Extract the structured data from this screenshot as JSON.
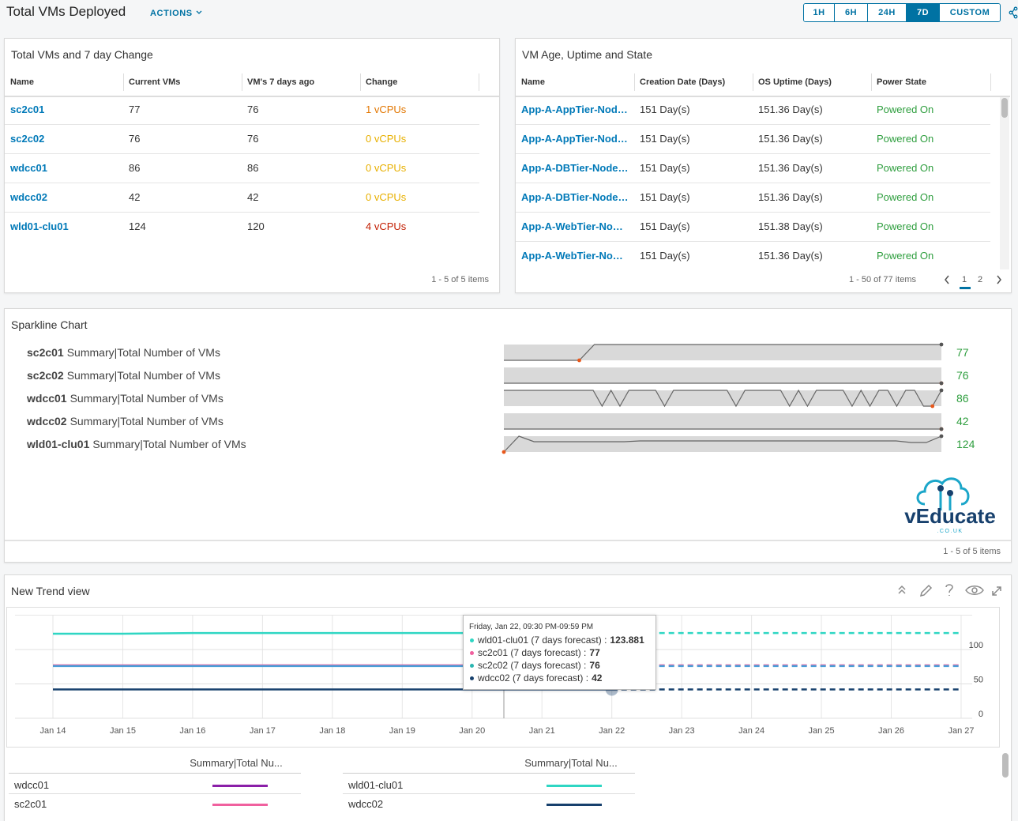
{
  "header": {
    "title": "Total VMs Deployed",
    "actions": "ACTIONS",
    "ranges": [
      "1H",
      "6H",
      "24H",
      "7D",
      "CUSTOM"
    ],
    "selected_range": 3
  },
  "vm_change": {
    "title": "Total VMs and 7 day Change",
    "columns": [
      "Name",
      "Current VMs",
      "VM's 7 days ago",
      "Change"
    ],
    "rows": [
      {
        "name": "sc2c01",
        "current": 77,
        "ago": 76,
        "change": "1 vCPUs",
        "change_color": "#e27600"
      },
      {
        "name": "sc2c02",
        "current": 76,
        "ago": 76,
        "change": "0 vCPUs",
        "change_color": "#e8b000"
      },
      {
        "name": "wdcc01",
        "current": 86,
        "ago": 86,
        "change": "0 vCPUs",
        "change_color": "#e8b000"
      },
      {
        "name": "wdcc02",
        "current": 42,
        "ago": 42,
        "change": "0 vCPUs",
        "change_color": "#e8b000"
      },
      {
        "name": "wld01-clu01",
        "current": 124,
        "ago": 120,
        "change": "4 vCPUs",
        "change_color": "#c21d00"
      }
    ],
    "footer": "1 - 5 of 5 items"
  },
  "vm_age": {
    "title": "VM Age, Uptime and State",
    "columns": [
      "Name",
      "Creation Date (Days)",
      "OS Uptime (Days)",
      "Power State"
    ],
    "rows": [
      [
        "App-A-AppTier-Nod…",
        "151 Day(s)",
        "151.36 Day(s)",
        "Powered On"
      ],
      [
        "App-A-AppTier-Nod…",
        "151 Day(s)",
        "151.36 Day(s)",
        "Powered On"
      ],
      [
        "App-A-DBTier-Node…",
        "151 Day(s)",
        "151.36 Day(s)",
        "Powered On"
      ],
      [
        "App-A-DBTier-Node…",
        "151 Day(s)",
        "151.36 Day(s)",
        "Powered On"
      ],
      [
        "App-A-WebTier-No…",
        "151 Day(s)",
        "151.38 Day(s)",
        "Powered On"
      ],
      [
        "App-A-WebTier-No…",
        "151 Day(s)",
        "151.36 Day(s)",
        "Powered On"
      ]
    ],
    "state_color": "#2e9e3e",
    "footer": "1 - 50 of 77 items",
    "pages": [
      1,
      2
    ],
    "current_page": 0
  },
  "sparklines": {
    "title": "Sparkline Chart",
    "metric": "Summary|Total Number of VMs",
    "value_color": "#2e9e3e",
    "rows": [
      {
        "name": "sc2c01",
        "value": 77,
        "values": [
          76,
          76,
          76,
          76,
          76,
          76,
          77,
          77,
          77,
          77,
          77,
          77,
          77,
          77,
          77,
          77,
          77,
          77,
          77,
          77,
          77,
          77,
          77,
          77,
          77,
          77,
          77,
          77,
          77,
          77
        ]
      },
      {
        "name": "sc2c02",
        "value": 76,
        "values": [
          76,
          76,
          76,
          76,
          76,
          76,
          76,
          76,
          76,
          76,
          76,
          76,
          76,
          76,
          76,
          76,
          76,
          76,
          76,
          76,
          76,
          76,
          76,
          76,
          76,
          76,
          76,
          76,
          76,
          76
        ]
      },
      {
        "name": "wdcc01",
        "value": 86,
        "values": [
          86,
          86,
          86,
          86,
          86,
          86,
          86,
          86,
          86,
          86,
          86,
          85,
          86,
          85,
          86,
          86,
          86,
          86,
          85,
          86,
          86,
          86,
          86,
          86,
          86,
          86,
          85,
          86,
          86,
          86,
          86,
          86,
          85,
          86,
          85,
          86,
          86,
          86,
          86,
          85,
          86,
          85,
          86,
          86,
          85,
          86,
          86,
          85,
          85,
          86
        ]
      },
      {
        "name": "wdcc02",
        "value": 42,
        "values": [
          42,
          42,
          42,
          42,
          42,
          42,
          42,
          42,
          42,
          42,
          42,
          42,
          42,
          42,
          42,
          42,
          42,
          42,
          42,
          42,
          42,
          42,
          42,
          42,
          42,
          42,
          42,
          42,
          42,
          42
        ]
      },
      {
        "name": "wld01-clu01",
        "value": 124,
        "values": [
          120,
          124,
          122.6,
          122.6,
          122.6,
          122.6,
          122.6,
          122.6,
          122.6,
          122.8,
          122.8,
          122.8,
          122.8,
          122.8,
          122.8,
          122.8,
          122.8,
          122.8,
          122.8,
          122.8,
          122.8,
          122.8,
          122.8,
          122.8,
          122.8,
          122.8,
          122.8,
          122.4,
          122.4,
          124
        ]
      }
    ],
    "footer": "1 - 5 of 5 items",
    "logo": {
      "name": "vEducate",
      "domain": ".CO.UK"
    }
  },
  "trend": {
    "title": "New Trend view",
    "chart_data": {
      "type": "line",
      "categories": [
        "Jan 14",
        "Jan 15",
        "Jan 16",
        "Jan 17",
        "Jan 18",
        "Jan 19",
        "Jan 20",
        "Jan 21",
        "Jan 22",
        "Jan 23",
        "Jan 24",
        "Jan 25",
        "Jan 26",
        "Jan 27"
      ],
      "ylim": [
        0,
        150
      ],
      "yticks": [
        0,
        50,
        100
      ],
      "grid": true,
      "series": [
        {
          "name": "wdcc01",
          "color": "#8b1fa8"
        },
        {
          "name": "wld01-clu01",
          "color": "#2fd6c3",
          "values": [
            123,
            123,
            124,
            124,
            124,
            124,
            124,
            124,
            124,
            null,
            null,
            null,
            null,
            null
          ],
          "forecast": [
            null,
            null,
            null,
            null,
            null,
            null,
            null,
            null,
            123.881,
            124,
            124,
            124,
            124,
            124
          ]
        },
        {
          "name": "sc2c01",
          "color": "#f0609e",
          "values": [
            77,
            77,
            77,
            77,
            77,
            77,
            77,
            77,
            77,
            null,
            null,
            null,
            null,
            null
          ],
          "forecast": [
            null,
            null,
            null,
            null,
            null,
            null,
            null,
            null,
            77,
            77,
            77,
            77,
            77,
            77
          ]
        },
        {
          "name": "wdcc02",
          "color": "#17406d",
          "values": [
            42,
            42,
            42,
            42,
            42,
            42,
            42,
            42,
            42,
            null,
            null,
            null,
            null,
            null
          ],
          "forecast": [
            null,
            null,
            null,
            null,
            null,
            null,
            null,
            null,
            42,
            42,
            42,
            42,
            42,
            42
          ]
        },
        {
          "name": "sc2c02",
          "color": "#4a9fd8",
          "values": [
            76,
            76,
            76,
            76,
            76,
            76,
            76,
            76,
            76,
            null,
            null,
            null,
            null,
            null
          ],
          "forecast": [
            null,
            null,
            null,
            null,
            null,
            null,
            null,
            null,
            76,
            76,
            76,
            76,
            76,
            76
          ]
        }
      ],
      "tooltip": {
        "title": "Friday, Jan 22, 09:30 PM-09:59 PM",
        "items": [
          {
            "label": "wld01-clu01 (7 days forecast) :",
            "value": 123.881,
            "color": "#2fd6c3"
          },
          {
            "label": "sc2c01 (7 days forecast) :",
            "value": 77,
            "color": "#f0609e"
          },
          {
            "label": "sc2c02 (7 days forecast) :",
            "value": 76,
            "color": "#2ab5b0"
          },
          {
            "label": "wdcc02 (7 days forecast) :",
            "value": 42,
            "color": "#17406d"
          }
        ]
      },
      "legend_header": "Summary|Total Nu..."
    }
  }
}
